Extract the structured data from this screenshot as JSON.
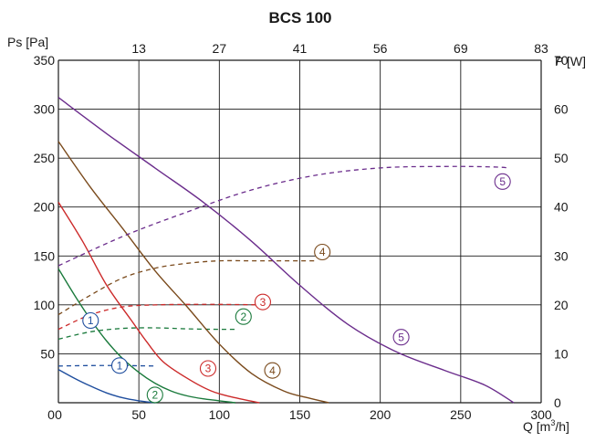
{
  "chart_data": {
    "type": "line",
    "title": "BCS 100",
    "ylabel": "Ps [Pa]",
    "y2label": "P [W]",
    "xlabel": {
      "main": "Q [m",
      "sup": "3",
      "tail": "/h]"
    },
    "xlim": [
      0,
      300
    ],
    "ylim": [
      0,
      350
    ],
    "y2lim": [
      0,
      70
    ],
    "x_ticks": [
      0,
      50,
      100,
      150,
      200,
      250,
      300
    ],
    "y_ticks": [
      50,
      100,
      150,
      200,
      250,
      300,
      350
    ],
    "y2_ticks": [
      0,
      10,
      20,
      30,
      40,
      50,
      60,
      70
    ],
    "top_ticks": [
      "13",
      "27",
      "41",
      "56",
      "69",
      "83"
    ],
    "top_tick_positions": [
      50,
      100,
      150,
      200,
      250,
      300
    ],
    "grid": true,
    "series": [
      {
        "marker": "1",
        "color": "#1f4e9e",
        "pressure": [
          [
            0,
            34
          ],
          [
            10,
            25
          ],
          [
            20,
            17
          ],
          [
            30,
            10
          ],
          [
            40,
            5
          ],
          [
            50,
            2
          ],
          [
            60,
            0
          ]
        ],
        "power": [
          [
            0,
            7.5
          ],
          [
            20,
            7.6
          ],
          [
            40,
            7.6
          ],
          [
            60,
            7.5
          ]
        ]
      },
      {
        "marker": "2",
        "color": "#1a7a3c",
        "pressure": [
          [
            0,
            137
          ],
          [
            10,
            110
          ],
          [
            20,
            85
          ],
          [
            30,
            63
          ],
          [
            40,
            45
          ],
          [
            50,
            31
          ],
          [
            60,
            20
          ],
          [
            70,
            12
          ],
          [
            80,
            7
          ],
          [
            90,
            4
          ],
          [
            100,
            2
          ],
          [
            110,
            0
          ]
        ],
        "power": [
          [
            0,
            13
          ],
          [
            20,
            14.5
          ],
          [
            40,
            15.2
          ],
          [
            60,
            15.3
          ],
          [
            80,
            15.1
          ],
          [
            100,
            15.0
          ],
          [
            110,
            15.0
          ]
        ]
      },
      {
        "marker": "3",
        "color": "#cc2a2a",
        "pressure": [
          [
            0,
            205
          ],
          [
            15,
            165
          ],
          [
            30,
            120
          ],
          [
            45,
            85
          ],
          [
            55,
            62
          ],
          [
            65,
            42
          ],
          [
            80,
            25
          ],
          [
            95,
            12
          ],
          [
            110,
            5
          ],
          [
            125,
            0
          ]
        ],
        "power": [
          [
            0,
            15
          ],
          [
            20,
            18
          ],
          [
            40,
            19.6
          ],
          [
            60,
            20
          ],
          [
            80,
            20.1
          ],
          [
            100,
            20.1
          ],
          [
            130,
            20
          ]
        ]
      },
      {
        "marker": "4",
        "color": "#7a4a1c",
        "pressure": [
          [
            0,
            267
          ],
          [
            20,
            220
          ],
          [
            40,
            178
          ],
          [
            60,
            135
          ],
          [
            80,
            98
          ],
          [
            100,
            60
          ],
          [
            120,
            30
          ],
          [
            140,
            12
          ],
          [
            155,
            5
          ],
          [
            168,
            0
          ]
        ],
        "power": [
          [
            0,
            18
          ],
          [
            20,
            22
          ],
          [
            40,
            25.5
          ],
          [
            60,
            27.5
          ],
          [
            80,
            28.5
          ],
          [
            100,
            29
          ],
          [
            120,
            29
          ],
          [
            140,
            29
          ],
          [
            160,
            29
          ]
        ]
      },
      {
        "marker": "5",
        "color": "#6b2d8c",
        "pressure": [
          [
            0,
            312
          ],
          [
            30,
            275
          ],
          [
            60,
            240
          ],
          [
            90,
            205
          ],
          [
            120,
            165
          ],
          [
            150,
            120
          ],
          [
            180,
            80
          ],
          [
            210,
            52
          ],
          [
            240,
            33
          ],
          [
            265,
            18
          ],
          [
            283,
            0
          ]
        ],
        "power": [
          [
            0,
            28
          ],
          [
            40,
            34
          ],
          [
            80,
            39
          ],
          [
            120,
            43.5
          ],
          [
            160,
            46.5
          ],
          [
            200,
            48
          ],
          [
            240,
            48.3
          ],
          [
            270,
            48.2
          ],
          [
            280,
            48
          ]
        ]
      }
    ],
    "labels": [
      {
        "text": "1",
        "series": 0,
        "x": 38,
        "y": 38
      },
      {
        "text": "1",
        "series": 0,
        "x": 20,
        "y": 84
      },
      {
        "text": "2",
        "series": 1,
        "x": 60,
        "y": 8
      },
      {
        "text": "2",
        "series": 1,
        "x": 115,
        "y": 88
      },
      {
        "text": "3",
        "series": 2,
        "x": 93,
        "y": 35
      },
      {
        "text": "3",
        "series": 2,
        "x": 127,
        "y": 103
      },
      {
        "text": "4",
        "series": 3,
        "x": 133,
        "y": 33
      },
      {
        "text": "4",
        "series": 3,
        "x": 164,
        "y": 154
      },
      {
        "text": "5",
        "series": 4,
        "x": 213,
        "y": 67
      },
      {
        "text": "5",
        "series": 4,
        "x": 276,
        "y": 226
      }
    ]
  }
}
